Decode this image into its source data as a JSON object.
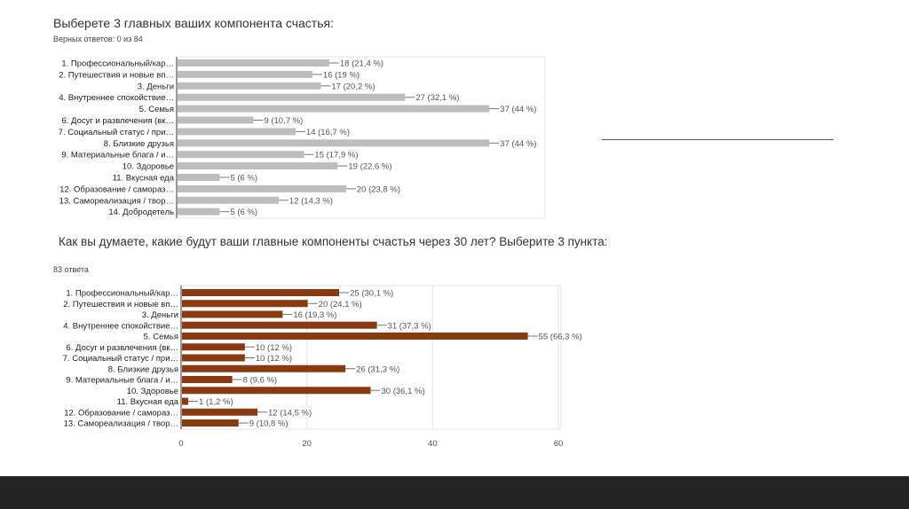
{
  "chart_data": [
    {
      "type": "bar",
      "orientation": "horizontal",
      "title": "Выберете 3 главных ваших компонента счастья:",
      "subtitle": "Верных ответов: 0 из 84",
      "color": "#bdbdbd",
      "xlim": [
        0,
        43.5
      ],
      "categories": [
        "1. Профессиональный/кар…",
        "2. Путешествия и новые вп…",
        "3. Деньги",
        "4. Внутреннее спокойствие…",
        "5. Семья",
        "6. Досуг и развлечения (вк…",
        "7. Социальный статус / при…",
        "8. Близкие друзья",
        "9. Материальные блага / и…",
        "10. Здоровье",
        "11. Вкусная еда",
        "12. Образование / самораз…",
        "13. Самореализация / твор…",
        "14. Добродетель"
      ],
      "values": [
        18,
        16,
        17,
        27,
        37,
        9,
        14,
        37,
        15,
        19,
        5,
        20,
        12,
        5
      ],
      "value_labels": [
        "18 (21,4 %)",
        "16 (19 %)",
        "17 (20,2 %)",
        "27 (32,1 %)",
        "37 (44 %)",
        "9 (10,7 %)",
        "14 (16,7 %)",
        "37 (44 %)",
        "15 (17,9 %)",
        "19 (22,6 %)",
        "5 (6 %)",
        "20 (23,8 %)",
        "12 (14,3 %)",
        "5 (6 %)"
      ]
    },
    {
      "type": "bar",
      "orientation": "horizontal",
      "title": "Как вы думаете, какие будут ваши главные компоненты счастья через 30 лет? Выберите 3 пункта:",
      "subtitle": "83 ответа",
      "color": "#8a3a10",
      "xlim": [
        0,
        60
      ],
      "xticks": [
        "0",
        "20",
        "40",
        "60"
      ],
      "categories": [
        "1. Профессиональный/кар…",
        "2. Путешествия и новые вп…",
        "3. Деньги",
        "4. Внутреннее спокойствие…",
        "5. Семья",
        "6. Досуг и развлечения (вк…",
        "7. Социальный статус / при…",
        "8. Близкие друзья",
        "9. Материальные блага / и…",
        "10. Здоровье",
        "11. Вкусная еда",
        "12. Образование / самораз…",
        "13. Самореализация / твор…"
      ],
      "values": [
        25,
        20,
        16,
        31,
        55,
        10,
        10,
        26,
        8,
        30,
        1,
        12,
        9
      ],
      "value_labels": [
        "25 (30,1 %)",
        "20 (24,1 %)",
        "16 (19,3 %)",
        "31 (37,3 %)",
        "55 (66,3 %)",
        "10 (12 %)",
        "10 (12 %)",
        "26 (31,3 %)",
        "8 (9,6 %)",
        "30 (36,1 %)",
        "1 (1,2 %)",
        "12 (14,5 %)",
        "9 (10,8 %)"
      ]
    }
  ]
}
